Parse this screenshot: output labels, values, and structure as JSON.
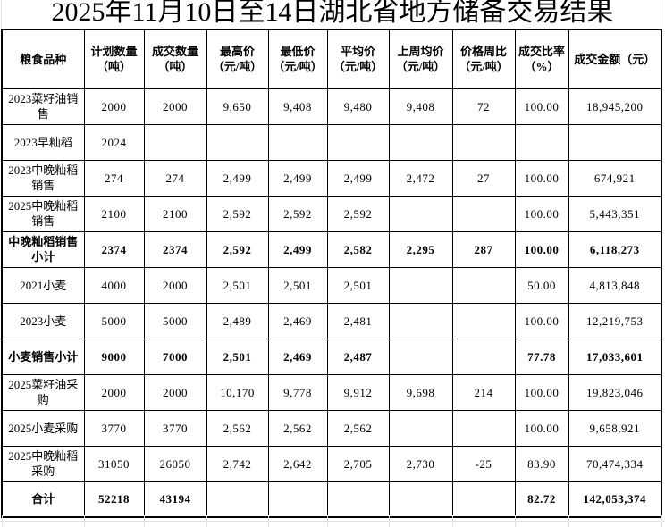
{
  "title": "2025年11月10日至14日湖北省地方储备交易结果",
  "colors": {
    "table_border": "#000000",
    "sheet_grid": "#e2e2e2",
    "text": "#000000",
    "background": "#ffffff"
  },
  "table": {
    "headers": [
      "粮食品种",
      "计划数量（吨）",
      "成交数量（吨）",
      "最高价（元/吨）",
      "最低价（元/吨）",
      "平均价（元/吨）",
      "上周均价（元/吨）",
      "价格周比（元/吨）",
      "成交比率（%）",
      "成交金额（元）"
    ],
    "rows": [
      {
        "label": "2023菜籽油销售",
        "bold": false,
        "cells": [
          "2000",
          "2000",
          "9,650",
          "9,408",
          "9,480",
          "9,408",
          "72",
          "100.00",
          "18,945,200"
        ]
      },
      {
        "label": "2023早籼稻",
        "bold": false,
        "cells": [
          "2024",
          "",
          "",
          "",
          "",
          "",
          "",
          "",
          ""
        ]
      },
      {
        "label": "2023中晚籼稻销售",
        "bold": false,
        "cells": [
          "274",
          "274",
          "2,499",
          "2,499",
          "2,499",
          "2,472",
          "27",
          "100.00",
          "674,921"
        ]
      },
      {
        "label": "2025中晚籼稻销售",
        "bold": false,
        "cells": [
          "2100",
          "2100",
          "2,592",
          "2,592",
          "2,592",
          "",
          "",
          "100.00",
          "5,443,351"
        ]
      },
      {
        "label": "中晚籼稻销售小计",
        "bold": true,
        "cells": [
          "2374",
          "2374",
          "2,592",
          "2,499",
          "2,582",
          "2,295",
          "287",
          "100.00",
          "6,118,273"
        ]
      },
      {
        "label": "2021小麦",
        "bold": false,
        "cells": [
          "4000",
          "2000",
          "2,501",
          "2,501",
          "2,501",
          "",
          "",
          "50.00",
          "4,813,848"
        ]
      },
      {
        "label": "2023小麦",
        "bold": false,
        "cells": [
          "5000",
          "5000",
          "2,489",
          "2,469",
          "2,481",
          "",
          "",
          "100.00",
          "12,219,753"
        ]
      },
      {
        "label": "小麦销售小计",
        "bold": true,
        "cells": [
          "9000",
          "7000",
          "2,501",
          "2,469",
          "2,487",
          "",
          "",
          "77.78",
          "17,033,601"
        ]
      },
      {
        "label": "2025菜籽油采购",
        "bold": false,
        "cells": [
          "2000",
          "2000",
          "10,170",
          "9,778",
          "9,912",
          "9,698",
          "214",
          "100.00",
          "19,823,046"
        ]
      },
      {
        "label": "2025小麦采购",
        "bold": false,
        "cells": [
          "3770",
          "3770",
          "2,562",
          "2,562",
          "2,562",
          "",
          "",
          "100.00",
          "9,658,921"
        ]
      },
      {
        "label": "2025中晚籼稻采购",
        "bold": false,
        "cells": [
          "31050",
          "26050",
          "2,742",
          "2,642",
          "2,705",
          "2,730",
          "-25",
          "83.90",
          "70,474,334"
        ]
      },
      {
        "label": "合计",
        "bold": true,
        "cells": [
          "52218",
          "43194",
          "",
          "",
          "",
          "",
          "",
          "82.72",
          "142,053,374"
        ]
      }
    ]
  },
  "chart_data": {
    "type": "table",
    "title": "2025年11月10日至14日湖北省地方储备交易结果",
    "columns": [
      "粮食品种",
      "计划数量（吨）",
      "成交数量（吨）",
      "最高价（元/吨）",
      "最低价（元/吨）",
      "平均价（元/吨）",
      "上周均价（元/吨）",
      "价格周比（元/吨）",
      "成交比率（%）",
      "成交金额（元）"
    ],
    "rows": [
      [
        "2023菜籽油销售",
        2000,
        2000,
        9650,
        9408,
        9480,
        9408,
        72,
        100.0,
        18945200
      ],
      [
        "2023早籼稻",
        2024,
        null,
        null,
        null,
        null,
        null,
        null,
        null,
        null
      ],
      [
        "2023中晚籼稻销售",
        274,
        274,
        2499,
        2499,
        2499,
        2472,
        27,
        100.0,
        674921
      ],
      [
        "2025中晚籼稻销售",
        2100,
        2100,
        2592,
        2592,
        2592,
        null,
        null,
        100.0,
        5443351
      ],
      [
        "中晚籼稻销售小计",
        2374,
        2374,
        2592,
        2499,
        2582,
        2295,
        287,
        100.0,
        6118273
      ],
      [
        "2021小麦",
        4000,
        2000,
        2501,
        2501,
        2501,
        null,
        null,
        50.0,
        4813848
      ],
      [
        "2023小麦",
        5000,
        5000,
        2489,
        2469,
        2481,
        null,
        null,
        100.0,
        12219753
      ],
      [
        "小麦销售小计",
        9000,
        7000,
        2501,
        2469,
        2487,
        null,
        null,
        77.78,
        17033601
      ],
      [
        "2025菜籽油采购",
        2000,
        2000,
        10170,
        9778,
        9912,
        9698,
        214,
        100.0,
        19823046
      ],
      [
        "2025小麦采购",
        3770,
        3770,
        2562,
        2562,
        2562,
        null,
        null,
        100.0,
        9658921
      ],
      [
        "2025中晚籼稻采购",
        31050,
        26050,
        2742,
        2642,
        2705,
        2730,
        -25,
        83.9,
        70474334
      ],
      [
        "合计",
        52218,
        43194,
        null,
        null,
        null,
        null,
        null,
        82.72,
        142053374
      ]
    ]
  }
}
